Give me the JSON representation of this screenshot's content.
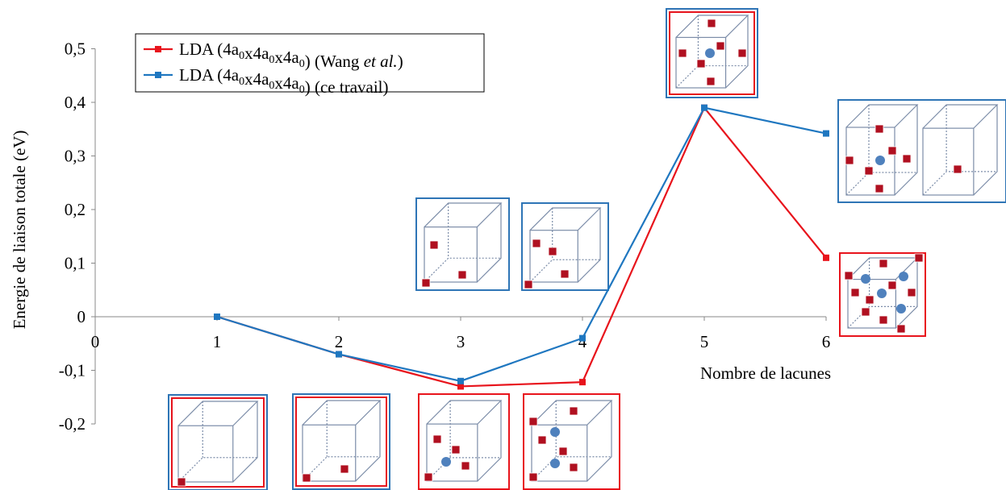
{
  "chart_data": {
    "type": "line",
    "xlabel": "Nombre de lacunes",
    "ylabel": "Energie de liaison totale (eV)",
    "xlim": [
      0,
      6
    ],
    "ylim": [
      -0.2,
      0.5
    ],
    "x_ticks": [
      "0",
      "1",
      "2",
      "3",
      "4",
      "5",
      "6"
    ],
    "y_ticks": [
      "-0,2",
      "-0,1",
      "0",
      "0,1",
      "0,2",
      "0,3",
      "0,4",
      "0,5"
    ],
    "grid": false,
    "legend_position": "top-left",
    "series": [
      {
        "name": "LDA (4a0x4a0x4a0) (Wang et al.)",
        "legend_label": {
          "main": "LDA (4a",
          "sub": "0",
          "x": "x",
          "end": ") (Wang ",
          "italic": "et al.",
          "close": ")"
        },
        "color": "#e8141c",
        "x": [
          1,
          2,
          3,
          4,
          5,
          6
        ],
        "y": [
          0.0,
          -0.07,
          -0.13,
          -0.122,
          0.39,
          0.11
        ]
      },
      {
        "name": "LDA (4a0x4a0x4a0) (ce travail)",
        "legend_label": {
          "main": "LDA (4a",
          "sub": "0",
          "x": "x",
          "end": ") (ce travail)",
          "italic": "",
          "close": ""
        },
        "color": "#1f77c0",
        "x": [
          1,
          2,
          3,
          4,
          5,
          6
        ],
        "y": [
          0.0,
          -0.07,
          -0.12,
          -0.04,
          0.39,
          0.342
        ]
      }
    ]
  },
  "colors": {
    "red_frame": "#e8141c",
    "blue_frame": "#2e75b6",
    "vacancy": "#b01020",
    "helium": "#4f81bd",
    "cube_line": "#7b8ca8"
  }
}
